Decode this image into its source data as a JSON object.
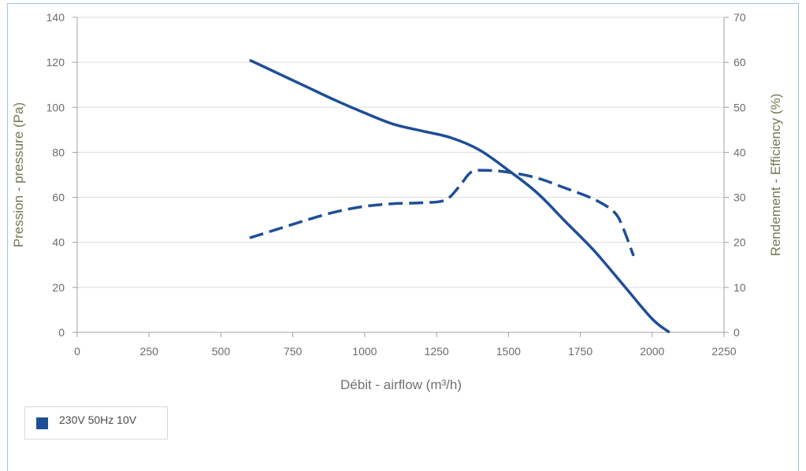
{
  "colors": {
    "series": "#1f4e96",
    "grid": "#dcdcdc",
    "axis": "#a0a0a0"
  },
  "chart_data": {
    "type": "line",
    "xlabel": "Débit - airflow (m³/h)",
    "ylabel": "Pression - pressure (Pa)",
    "y2label": "Rendement - Efficiency (%)",
    "xlim": [
      0,
      2250
    ],
    "ylim": [
      0,
      140
    ],
    "y2lim": [
      0,
      70
    ],
    "xticks": [
      0,
      250,
      500,
      750,
      1000,
      1250,
      1500,
      1750,
      2000,
      2250
    ],
    "yticks": [
      0,
      20,
      40,
      60,
      80,
      100,
      120,
      140
    ],
    "y2ticks": [
      0,
      10,
      20,
      30,
      40,
      50,
      60,
      70
    ],
    "grid": "horizontal",
    "legend_position": "bottom-left",
    "series": [
      {
        "name": "230V 50Hz 10V",
        "axis": "left",
        "style": "solid",
        "x": [
          600,
          700,
          800,
          900,
          1000,
          1100,
          1200,
          1300,
          1400,
          1500,
          1600,
          1700,
          1800,
          1900,
          2000,
          2060
        ],
        "y": [
          121,
          115,
          109,
          103,
          97.5,
          92.5,
          89.5,
          86.5,
          81,
          72,
          62,
          49,
          36,
          21,
          6,
          0
        ]
      },
      {
        "name": "",
        "axis": "right",
        "style": "dashed",
        "x": [
          600,
          700,
          800,
          900,
          1000,
          1100,
          1200,
          1280,
          1330,
          1370,
          1420,
          1500,
          1600,
          1700,
          1800,
          1870,
          1900,
          1935
        ],
        "y": [
          21,
          23,
          25,
          26.8,
          28,
          28.6,
          28.8,
          29.4,
          32.5,
          35.6,
          36,
          35.6,
          34.3,
          32,
          29.5,
          26.6,
          23,
          17
        ]
      }
    ]
  },
  "legend": {
    "label": "230V 50Hz 10V"
  }
}
